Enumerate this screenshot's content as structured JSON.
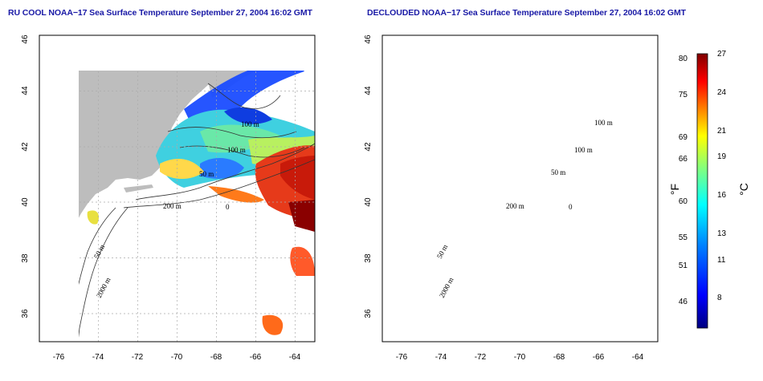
{
  "panels": [
    {
      "title": "RU COOL NOAA−17 Sea Surface Temperature September 27, 2004 16:02 GMT",
      "lon_ticks": [
        "-76",
        "-74",
        "-72",
        "-70",
        "-68",
        "-66",
        "-64"
      ],
      "lat_ticks": [
        "36",
        "38",
        "40",
        "42",
        "44",
        "46"
      ],
      "contour_labels": [
        "100 m",
        "100 m",
        "50 m",
        "200 m",
        "2000 m",
        "50 m",
        "0"
      ]
    },
    {
      "title": "DECLOUDED NOAA−17 Sea Surface Temperature September 27, 2004 16:02 GMT",
      "lon_ticks": [
        "-76",
        "-74",
        "-72",
        "-70",
        "-68",
        "-66",
        "-64"
      ],
      "lat_ticks": [
        "36",
        "38",
        "40",
        "42",
        "44",
        "46"
      ],
      "contour_labels": [
        "100 m",
        "100 m",
        "50 m",
        "200 m",
        "2000 m",
        "50 m",
        "0"
      ]
    }
  ],
  "map": {
    "lon_range": [
      -77,
      -63
    ],
    "lat_range": [
      35,
      46
    ],
    "grid": "dotted",
    "land_color": "#bdbdbd",
    "cloud_color": "#ffffff"
  },
  "colorbar": {
    "fahrenheit_ticks": [
      "80",
      "75",
      "69",
      "66",
      "60",
      "55",
      "51",
      "46"
    ],
    "celsius_ticks": [
      "27",
      "24",
      "21",
      "19",
      "16",
      "13",
      "11",
      "8"
    ],
    "fahrenheit_unit": "°F",
    "celsius_unit": "°C",
    "range_c": [
      5,
      27
    ],
    "colors": [
      "#000080",
      "#0000ff",
      "#0080ff",
      "#00ffff",
      "#80ff80",
      "#ffff00",
      "#ff8000",
      "#ff0000",
      "#800000"
    ]
  }
}
